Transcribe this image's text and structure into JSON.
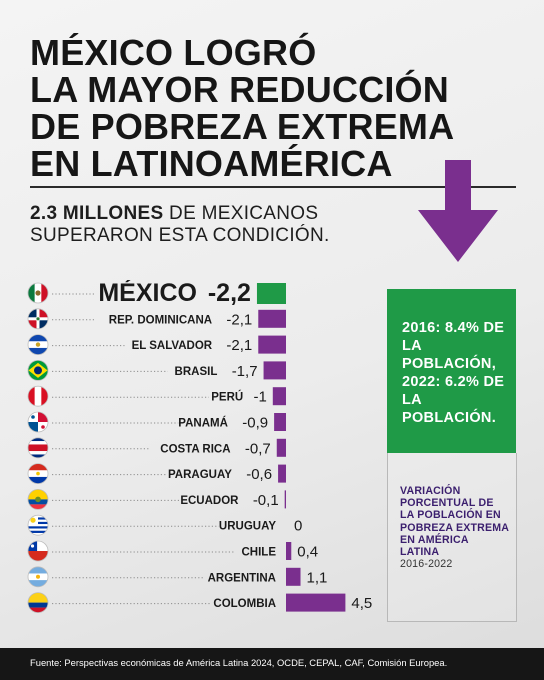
{
  "headline": {
    "lines": [
      "MÉXICO LOGRÓ",
      "LA MAYOR REDUCCIÓN",
      "DE POBREZA EXTREMA",
      "EN LATINOAMÉRICA"
    ]
  },
  "subheadline": {
    "bold": "2.3 MILLONES",
    "rest_line1": " DE MEXICANOS",
    "line2": "SUPERARON ESTA CONDICIÓN."
  },
  "colors": {
    "accent_purple": "#7a2f8e",
    "accent_green": "#1f9a47",
    "text_dark": "#161616"
  },
  "info_green": {
    "year1": "2016:",
    "value1": "8.4%",
    "text1": "DE LA POBLACIÓN,",
    "year2": "2022:",
    "value2": "6.2%",
    "text2": "DE LA POBLACIÓN."
  },
  "info_note": {
    "label": "VARIACIÓN PORCENTUAL DE LA POBLACIÓN EN POBREZA EXTREMA EN AMÉRICA LATINA",
    "years": "2016-2022"
  },
  "footer": {
    "source": "Fuente: Perspectivas económicas de América Latina 2024, OCDE, CEPAL, CAF, Comisión Europea."
  },
  "chart_data": {
    "type": "bar",
    "orientation": "horizontal",
    "categories": [
      "MÉXICO",
      "REP. DOMINICANA",
      "EL SALVADOR",
      "BRASIL",
      "PERÚ",
      "PANAMÁ",
      "COSTA RICA",
      "PARAGUAY",
      "ECUADOR",
      "URUGUAY",
      "CHILE",
      "ARGENTINA",
      "COLOMBIA"
    ],
    "values": [
      -2.2,
      -2.1,
      -2.1,
      -1.7,
      -1,
      -0.9,
      -0.7,
      -0.6,
      -0.1,
      0,
      0.4,
      1.1,
      4.5
    ],
    "value_labels": [
      "-2,2",
      "-2,1",
      "-2,1",
      "-1,7",
      "-1",
      "-0,9",
      "-0,7",
      "-0,6",
      "-0,1",
      "0",
      "0,4",
      "1,1",
      "4,5"
    ],
    "highlight": "MÉXICO",
    "colors": {
      "highlight": "#1f9a47",
      "default": "#7a2f8e"
    },
    "flags": [
      "mexico-flag",
      "dominican-republic-flag",
      "el-salvador-flag",
      "brazil-flag",
      "peru-flag",
      "panama-flag",
      "costa-rica-flag",
      "paraguay-flag",
      "ecuador-flag",
      "uruguay-flag",
      "chile-flag",
      "argentina-flag",
      "colombia-flag"
    ],
    "xlim": [
      -2.2,
      4.5
    ],
    "grid": false
  }
}
